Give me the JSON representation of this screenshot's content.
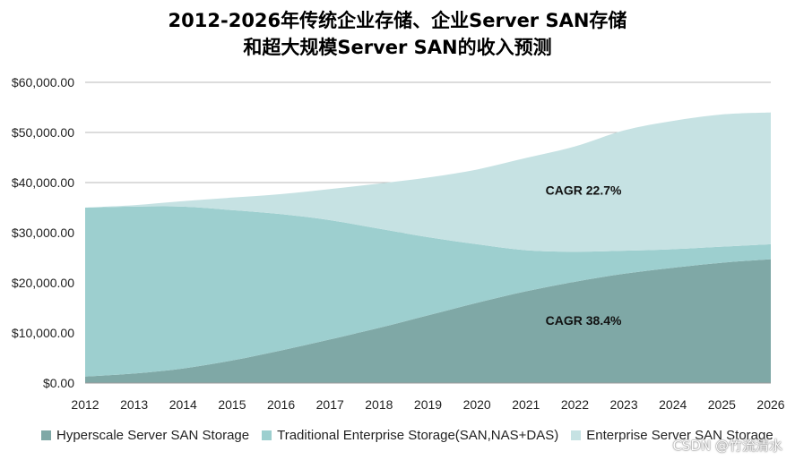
{
  "chart_data": {
    "type": "area",
    "stacked": true,
    "title_line1": "2012-2026年传统企业存储、企业Server SAN存储",
    "title_line2": "和超大规模Server SAN的收入预测",
    "categories": [
      "2012",
      "2013",
      "2014",
      "2015",
      "2016",
      "2017",
      "2018",
      "2019",
      "2020",
      "2021",
      "2022",
      "2023",
      "2024",
      "2025",
      "2026"
    ],
    "y_ticks": [
      "$0.00",
      "$10,000.00",
      "$20,000.00",
      "$30,000.00",
      "$40,000.00",
      "$50,000.00",
      "$60,000.00"
    ],
    "ylim": [
      0,
      60000
    ],
    "grid": true,
    "series": [
      {
        "name": "Hyperscale Server SAN Storage",
        "color": "#7fa8a6",
        "values": [
          1300,
          1900,
          2900,
          4500,
          6500,
          8700,
          11000,
          13500,
          16000,
          18300,
          20200,
          21800,
          23000,
          24000,
          24700
        ]
      },
      {
        "name": "Traditional Enterprise Storage(SAN,NAS+DAS)",
        "color": "#9dcfcf",
        "values": [
          33700,
          33300,
          32300,
          30000,
          27200,
          23800,
          19800,
          15600,
          11700,
          8200,
          6000,
          4600,
          3700,
          3200,
          3000
        ]
      },
      {
        "name": "Enterprise Server SAN Storage",
        "color": "#c6e2e3",
        "values": [
          0,
          300,
          1100,
          2500,
          4000,
          6200,
          9000,
          11900,
          14900,
          18400,
          21000,
          24000,
          25600,
          26400,
          26300
        ]
      }
    ],
    "annotations": [
      {
        "text": "CAGR 22.7%",
        "x_category": "2023",
        "y_value": 38500
      },
      {
        "text": "CAGR 38.4%",
        "x_category": "2023",
        "y_value": 12500
      }
    ]
  },
  "watermark": "CSDN @竹流清水"
}
